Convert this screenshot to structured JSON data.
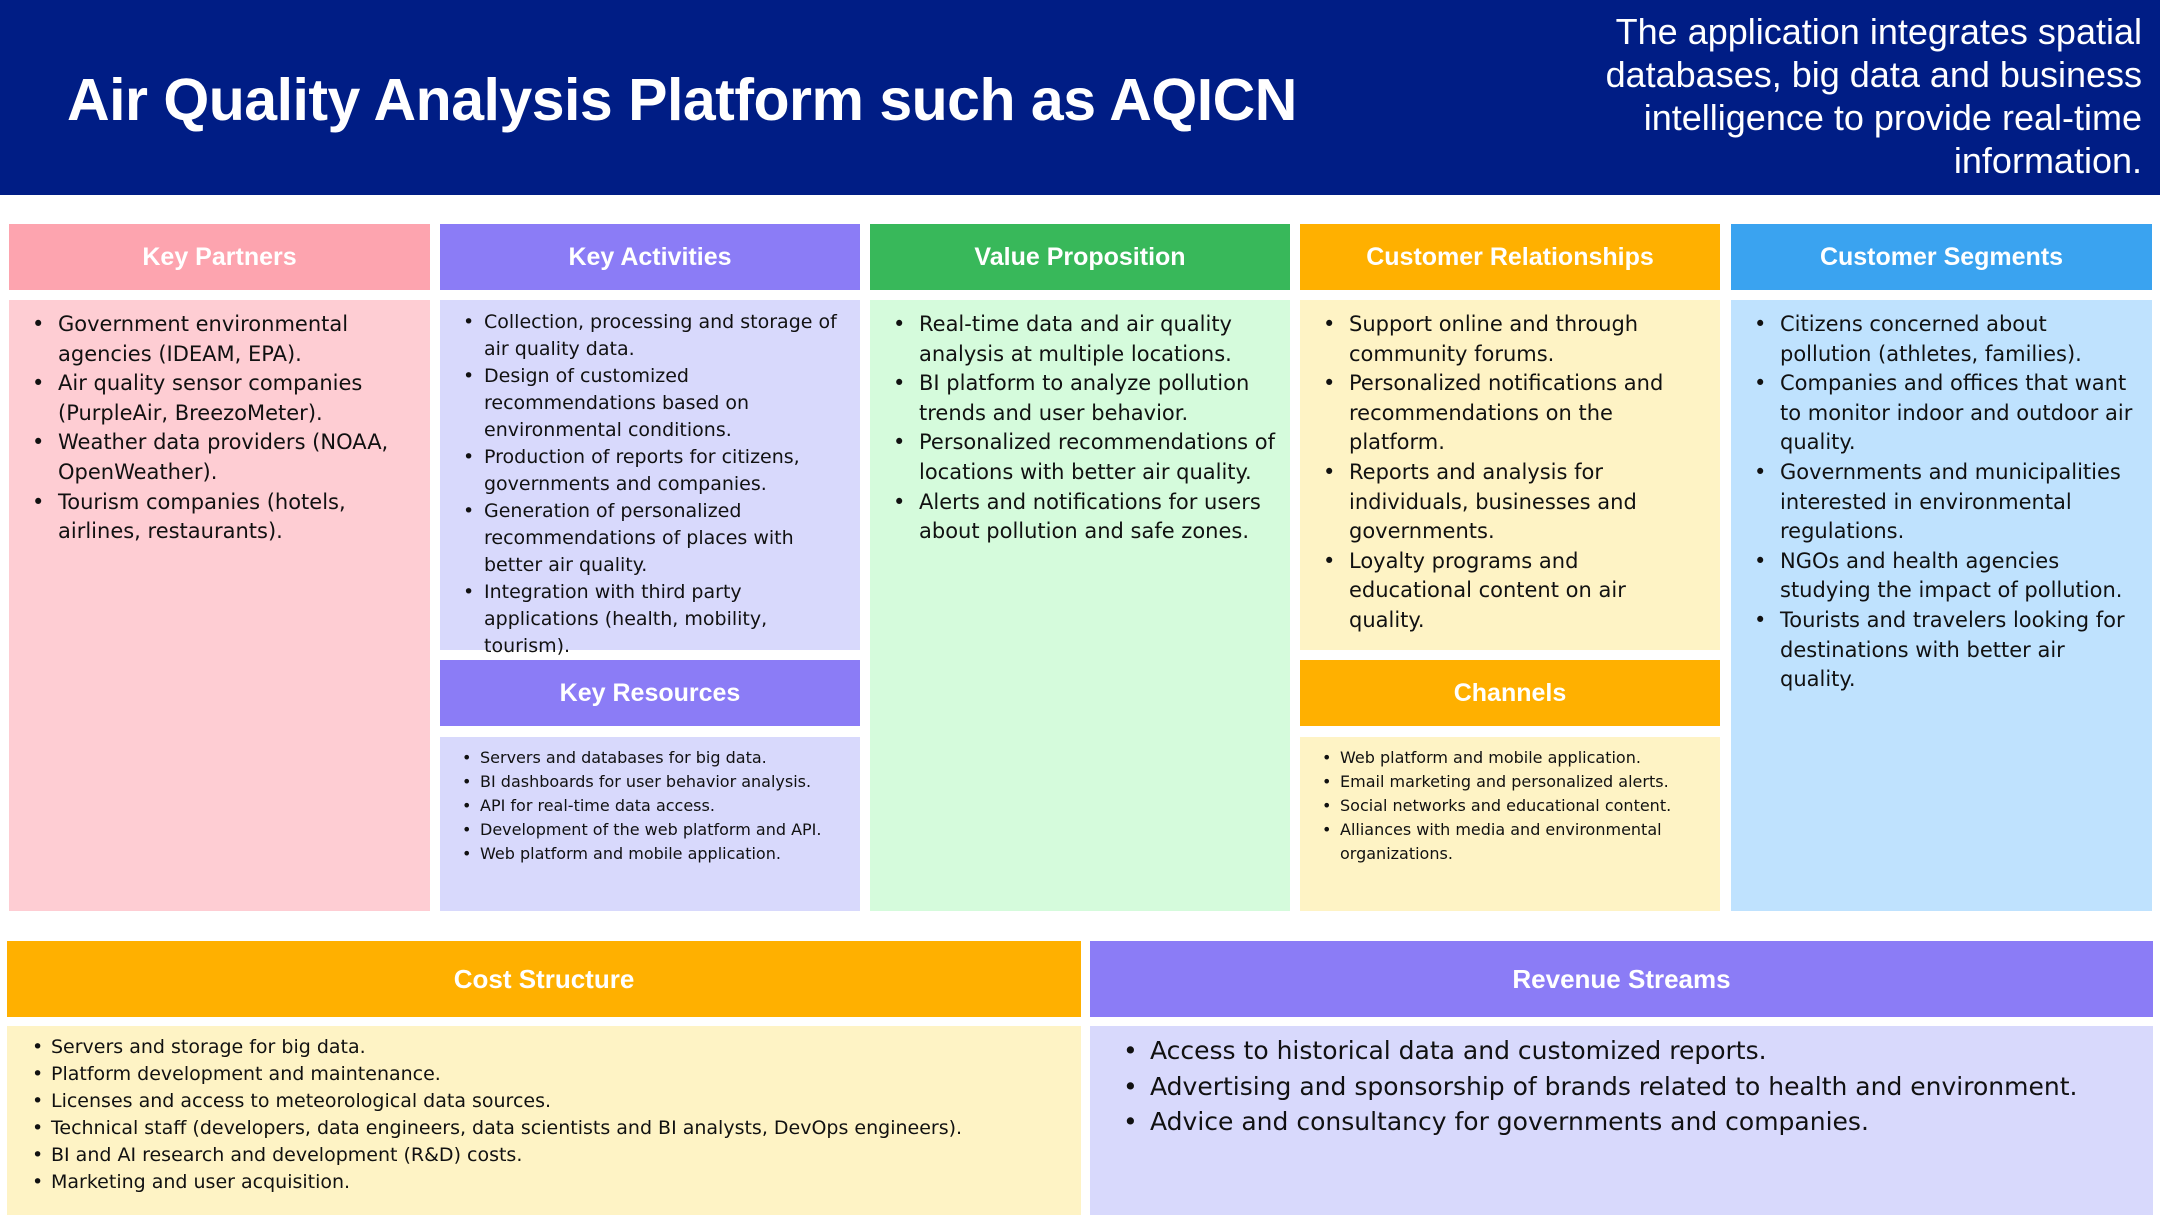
{
  "header": {
    "title": "Air Quality Analysis Platform such as AQICN",
    "description": "The application integrates spatial databases, big data and business intelligence to provide real-time information."
  },
  "colors": {
    "header_bg": "#001d85",
    "key_partners": "#fda4af",
    "key_partners_body": "#fecdd3",
    "key_activities": "#8b7cf6",
    "key_activities_body": "#d8d9fc",
    "value_proposition": "#38b85a",
    "value_proposition_body": "#d5fbdc",
    "customer_relationships": "#ffb000",
    "customer_relationships_body": "#fef3c5",
    "customer_segments": "#3aa3f0",
    "customer_segments_body": "#bfe2fe"
  },
  "key_partners": {
    "title": "Key Partners",
    "items": [
      "Government environmental agencies (IDEAM, EPA).",
      "Air quality sensor companies (PurpleAir, BreezoMeter).",
      "Weather data providers (NOAA, OpenWeather).",
      "Tourism companies (hotels, airlines, restaurants)."
    ]
  },
  "key_activities": {
    "title": "Key Activities",
    "items": [
      "Collection, processing and storage of air quality data.",
      "Design of customized recommendations based on environmental conditions.",
      "Production of reports for citizens, governments and companies.",
      "Generation of personalized recommendations of places with better air quality.",
      "Integration with third party applications (health, mobility, tourism)."
    ]
  },
  "key_resources": {
    "title": "Key Resources",
    "items": [
      "Servers and databases for big data.",
      "BI dashboards for user behavior analysis.",
      "API for real-time data access.",
      "Development of the web platform and API.",
      "Web platform and mobile application."
    ]
  },
  "value_proposition": {
    "title": "Value Proposition",
    "items": [
      "Real-time data and air quality analysis at multiple locations.",
      "BI platform to analyze pollution trends and user behavior.",
      "Personalized recommendations of locations with better air quality.",
      "Alerts and notifications for users about pollution and safe zones."
    ]
  },
  "customer_relationships": {
    "title": "Customer Relationships",
    "items": [
      "Support online and through community forums.",
      "Personalized notifications and recommendations on the platform.",
      "Reports and analysis for individuals, businesses and governments.",
      "Loyalty programs and educational content on air quality."
    ]
  },
  "channels": {
    "title": "Channels",
    "items": [
      "Web platform and mobile application.",
      "Email marketing and personalized alerts.",
      "Social networks and educational content.",
      "Alliances with media and environmental organizations."
    ]
  },
  "customer_segments": {
    "title": "Customer Segments",
    "items": [
      "Citizens concerned about pollution (athletes, families).",
      "Companies and offices that want to monitor indoor and outdoor air quality.",
      "Governments and municipalities interested in environmental regulations.",
      "NGOs and health agencies studying the impact of pollution.",
      "Tourists and travelers looking for destinations with better air quality."
    ]
  },
  "cost_structure": {
    "title": "Cost Structure",
    "items": [
      "Servers and storage for big data.",
      "Platform development and maintenance.",
      "Licenses and access to meteorological data sources.",
      "Technical staff (developers, data engineers, data scientists and BI analysts, DevOps engineers).",
      "BI and AI research and development (R&D) costs.",
      "Marketing and user acquisition."
    ]
  },
  "revenue_streams": {
    "title": "Revenue Streams",
    "items": [
      "Access to historical data and customized reports.",
      "Advertising and sponsorship of brands related to health and environment.",
      "Advice and consultancy for governments and companies."
    ]
  }
}
